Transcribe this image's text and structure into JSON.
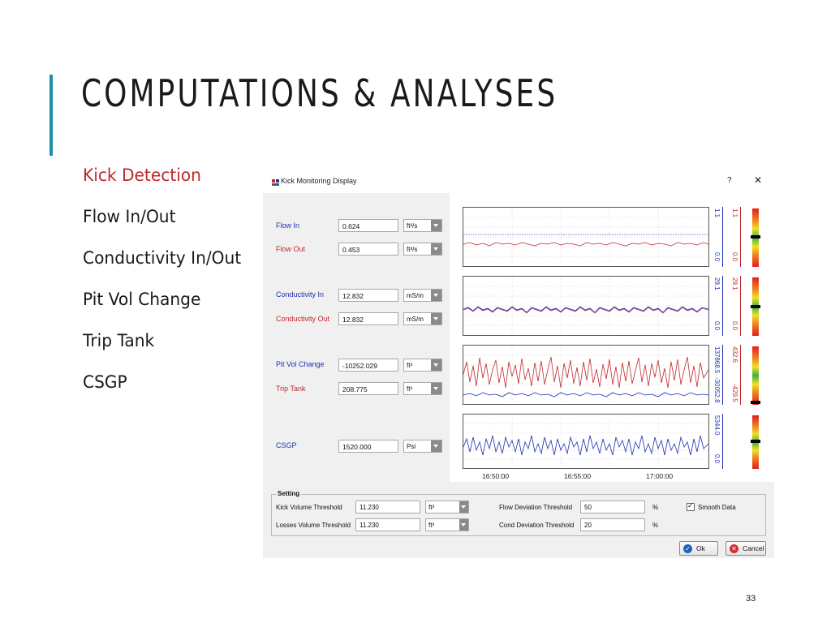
{
  "slide": {
    "title": "COMPUTATIONS & ANALYSES",
    "page_number": "33",
    "bullets": [
      "Kick Detection",
      "Flow In/Out",
      "Conductivity In/Out",
      "Pit Vol Change",
      "Trip Tank",
      "CSGP"
    ]
  },
  "window": {
    "title": "Kick Monitoring Display",
    "help_label": "?",
    "close_label": "✕"
  },
  "fields": [
    {
      "label": "Flow In",
      "value": "0.624",
      "unit": "ft³/s"
    },
    {
      "label": "Flow Out",
      "value": "0.453",
      "unit": "ft³/s"
    },
    {
      "label": "Conductivity In",
      "value": "12.832",
      "unit": "mS/m"
    },
    {
      "label": "Conductivity Out",
      "value": "12.832",
      "unit": "mS/m"
    },
    {
      "label": "Pit Vol Change",
      "value": "-10252.029",
      "unit": "ft³"
    },
    {
      "label": "Trip Tank",
      "value": "208.775",
      "unit": "ft³"
    },
    {
      "label": "CSGP",
      "value": "1520.000",
      "unit": "Psi"
    }
  ],
  "charts": [
    {
      "blue_max": "1.1",
      "blue_min": "0.0",
      "red_max": "1.1",
      "red_min": "0.0"
    },
    {
      "blue_max": "29.1",
      "blue_min": "0.0",
      "red_max": "29.1",
      "red_min": "0.0"
    },
    {
      "blue_max": "137868.5",
      "blue_min": "-30052.8",
      "red_max": "432.6",
      "red_min": "-429.5"
    },
    {
      "blue_max": "5344.0",
      "blue_min": "0.0"
    }
  ],
  "time_axis": [
    "16:50:00",
    "16:55:00",
    "17:00:00"
  ],
  "settings": {
    "legend": "Setting",
    "kick_volume_label": "Kick Volume Threshold",
    "kick_volume_value": "11.230",
    "kick_volume_unit": "ft³",
    "losses_volume_label": "Losses Volume Threshold",
    "losses_volume_value": "11.230",
    "losses_volume_unit": "ft³",
    "flow_deviation_label": "Flow Deviation Threshold",
    "flow_deviation_value": "50",
    "flow_deviation_unit": "%",
    "cond_deviation_label": "Cond Deviation Threshold",
    "cond_deviation_value": "20",
    "cond_deviation_unit": "%",
    "smooth_label": "Smooth Data",
    "smooth_checked": true
  },
  "buttons": {
    "ok": "Ok",
    "cancel": "Cancel"
  },
  "colors": {
    "accent": "#1f8ea8",
    "active_bullet": "#c0282d",
    "series_blue": "#2030b0",
    "series_red": "#c0282d"
  }
}
